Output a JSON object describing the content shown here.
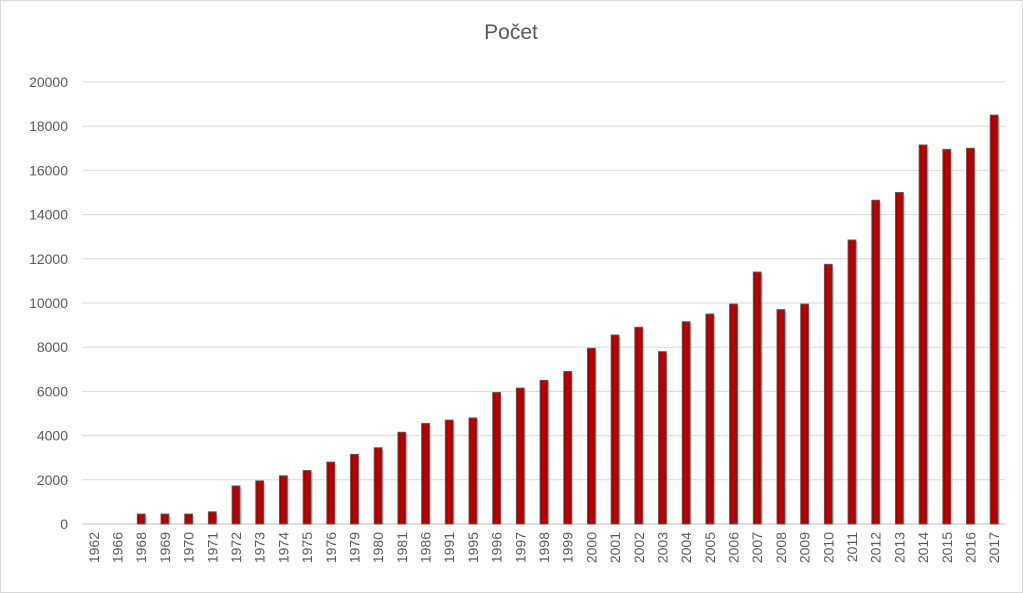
{
  "chart_data": {
    "type": "bar",
    "title": "Počet",
    "xlabel": "",
    "ylabel": "",
    "ylim": [
      0,
      20000
    ],
    "yticks": [
      0,
      2000,
      4000,
      6000,
      8000,
      10000,
      12000,
      14000,
      16000,
      18000,
      20000
    ],
    "grid": true,
    "legend": "none",
    "bar_color": "#c00000",
    "categories": [
      "1962",
      "1966",
      "1968",
      "1969",
      "1970",
      "1971",
      "1972",
      "1973",
      "1974",
      "1975",
      "1976",
      "1979",
      "1980",
      "1981",
      "1986",
      "1991",
      "1995",
      "1996",
      "1997",
      "1998",
      "1999",
      "2000",
      "2001",
      "2002",
      "2003",
      "2004",
      "2005",
      "2006",
      "2007",
      "2008",
      "2009",
      "2010",
      "2011",
      "2012",
      "2013",
      "2014",
      "2015",
      "2016",
      "2017"
    ],
    "values": [
      0,
      0,
      450,
      450,
      450,
      550,
      1720,
      1950,
      2180,
      2420,
      2800,
      3150,
      3450,
      4150,
      4550,
      4700,
      4800,
      5950,
      6150,
      6500,
      6900,
      7950,
      8550,
      8900,
      7800,
      9150,
      9500,
      9950,
      11400,
      9700,
      9950,
      11750,
      12850,
      14650,
      15000,
      17150,
      16950,
      17000,
      18500
    ]
  }
}
